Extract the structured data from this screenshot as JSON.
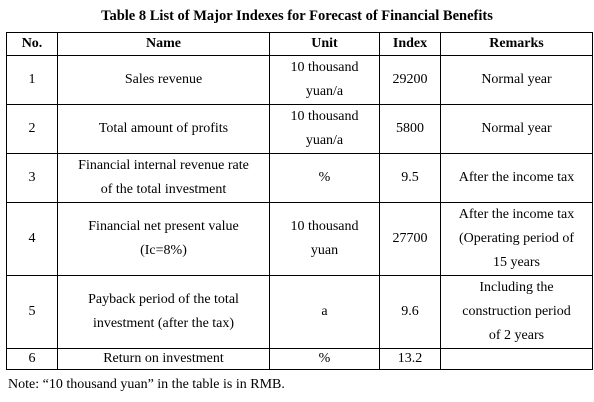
{
  "title": "Table 8 List of Major Indexes for Forecast of Financial Benefits",
  "headers": {
    "no": "No.",
    "name": "Name",
    "unit": "Unit",
    "index": "Index",
    "remarks": "Remarks"
  },
  "rows": [
    {
      "no": "1",
      "name": [
        "Sales revenue"
      ],
      "unit": [
        "10 thousand",
        "yuan/a"
      ],
      "index": "29200",
      "remarks": [
        "Normal year"
      ]
    },
    {
      "no": "2",
      "name": [
        "Total amount of profits"
      ],
      "unit": [
        "10 thousand",
        "yuan/a"
      ],
      "index": "5800",
      "remarks": [
        "Normal year"
      ]
    },
    {
      "no": "3",
      "name": [
        "Financial internal revenue rate",
        "of the total investment"
      ],
      "unit": [
        "%"
      ],
      "index": "9.5",
      "remarks": [
        "After the income tax"
      ]
    },
    {
      "no": "4",
      "name": [
        "Financial net present value",
        "(Ic=8%)"
      ],
      "unit": [
        "10 thousand",
        "yuan"
      ],
      "index": "27700",
      "remarks": [
        "After the income tax",
        "(Operating period of",
        "15 years"
      ]
    },
    {
      "no": "5",
      "name": [
        "Payback period of the total",
        "investment (after the tax)"
      ],
      "unit": [
        "a"
      ],
      "index": "9.6",
      "remarks": [
        "Including the",
        "construction period",
        "of 2 years"
      ]
    },
    {
      "no": "6",
      "name": [
        "Return on investment"
      ],
      "unit": [
        "%"
      ],
      "index": "13.2",
      "remarks": []
    }
  ],
  "note": "Note: “10 thousand yuan” in the table is in RMB."
}
